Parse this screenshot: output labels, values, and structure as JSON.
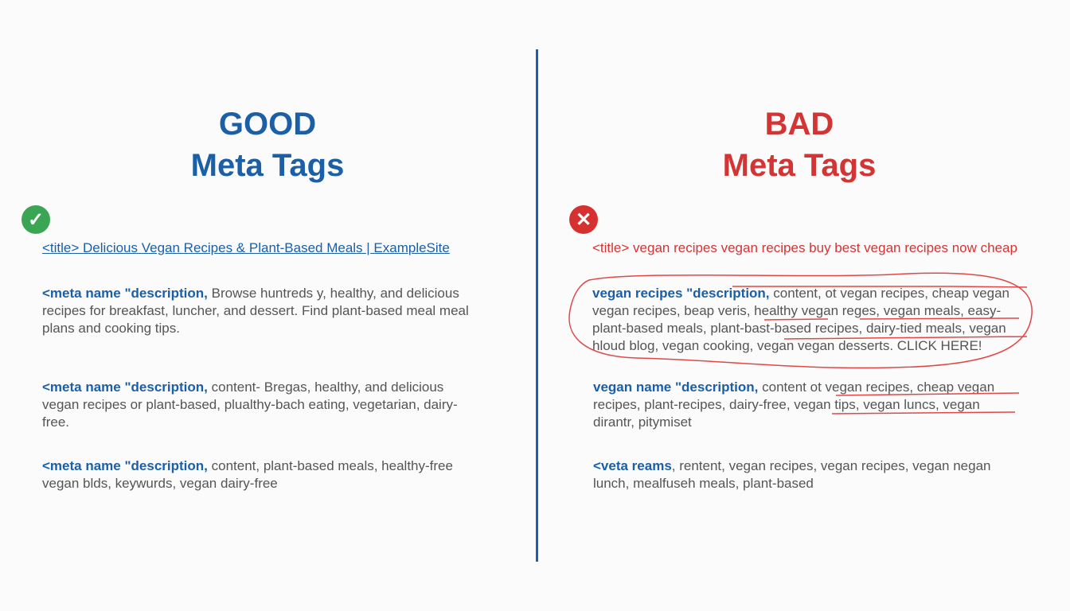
{
  "good": {
    "heading_line1": "GOOD",
    "heading_line2": "Meta Tags",
    "icon": "check-circle-icon",
    "color": "#1b5fa6",
    "title_line": "<title> Delicious Vegan Recipes & Plant-Based Meals | ExampleSite",
    "blocks": [
      {
        "tag": "<meta name \"description,",
        "text": " Browse huntreds y, healthy, and delicious recipes for breakfast, luncher, and dessert. Find plant-based meal meal plans and cooking tips."
      },
      {
        "tag": "<meta name \"description,",
        "text": " content- Bregas, healthy, and delicious vegan recipes or plant-based, plualthy-bach eating, vegetarian, dairy-free."
      },
      {
        "tag": "<meta name \"description,",
        "text": " content, plant-based meals, healthy-free vegan blds, keywurds, vegan dairy-free"
      }
    ]
  },
  "bad": {
    "heading_line1": "BAD",
    "heading_line2": "Meta Tags",
    "icon": "x-circle-icon",
    "color": "#d33434",
    "title_line": "<title> vegan recipes vegan recipes buy best vegan recipes now cheap",
    "blocks": [
      {
        "tag": "vegan recipes \"description,",
        "text": " content, ot vegan recipes, cheap vegan vegan recipes, beap veris, healthy vegan reges, vegan meals, easy-plant-based meals, plant-bast-based recipes, dairy-tied meals, vegan hloud blog, vegan cooking, vegan vegan desserts. CLICK HERE!"
      },
      {
        "tag": "vegan name \"description,",
        "text": " content ot vegan recipes, cheap vegan recipes, plant-recipes, dairy-free, vegan tips, vegan luncs, vegan dirantr, pitymiset"
      },
      {
        "tag": "<veta reams",
        "text": ", rentent, vegan recipes, vegan recipes, vegan negan lunch, mealfuseh meals, plant-based"
      }
    ]
  }
}
